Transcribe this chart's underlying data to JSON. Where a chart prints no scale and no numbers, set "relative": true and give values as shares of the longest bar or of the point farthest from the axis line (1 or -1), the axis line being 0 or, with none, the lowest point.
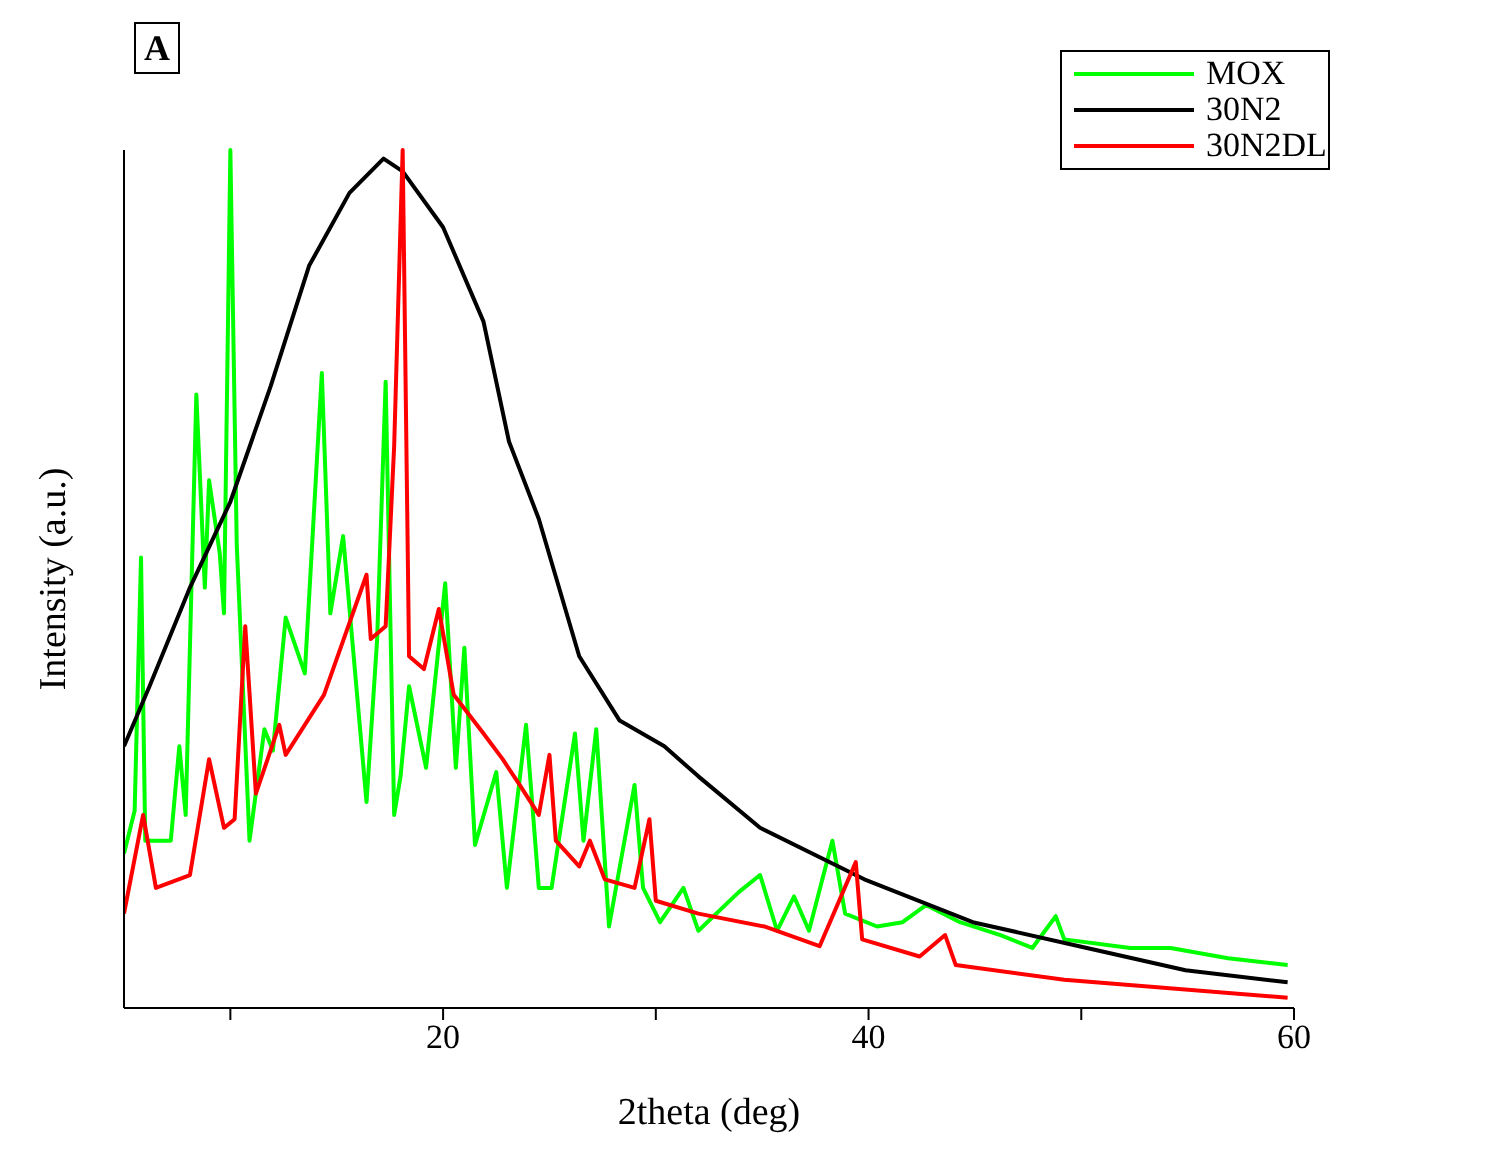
{
  "chart_data": {
    "type": "line",
    "relative": true,
    "xlabel": "2theta (deg)",
    "ylabel": "Intensity (a.u.)",
    "annotations": [
      "A"
    ],
    "xlim": [
      5,
      60
    ],
    "xticks": [
      {
        "value": 10,
        "label": null
      },
      20,
      {
        "value": 30,
        "label": null
      },
      40,
      {
        "value": 50,
        "label": null
      },
      60
    ],
    "legend": "top right",
    "grid": false,
    "marker": "none",
    "line_style": "solid",
    "series": [
      {
        "name": "MOX",
        "color": "#00ff00",
        "x": [
          5,
          5.5,
          5.8,
          6.0,
          7.2,
          7.6,
          7.9,
          8.4,
          8.8,
          9.0,
          9.5,
          9.7,
          10.0,
          10.3,
          10.9,
          11.6,
          12.0,
          12.6,
          13.5,
          14.3,
          14.7,
          15.3,
          16.4,
          16.9,
          17.3,
          17.7,
          18.0,
          18.4,
          19.2,
          20.1,
          20.6,
          21.0,
          21.5,
          22.5,
          23.0,
          23.9,
          24.5,
          25.1,
          26.2,
          26.6,
          27.2,
          27.8,
          29.0,
          29.4,
          30.2,
          31.3,
          32.0,
          33.9,
          34.9,
          35.7,
          36.5,
          37.2,
          38.3,
          38.9,
          40.4,
          41.6,
          42.7,
          44.3,
          46.2,
          47.7,
          48.8,
          49.2,
          52.3,
          54.2,
          56.9,
          59.7
        ],
        "values": [
          0.18,
          0.23,
          0.525,
          0.195,
          0.195,
          0.305,
          0.225,
          0.715,
          0.49,
          0.615,
          0.53,
          0.46,
          1.0,
          0.54,
          0.195,
          0.325,
          0.3,
          0.455,
          0.39,
          0.74,
          0.46,
          0.55,
          0.24,
          0.43,
          0.73,
          0.225,
          0.27,
          0.375,
          0.28,
          0.495,
          0.28,
          0.42,
          0.19,
          0.275,
          0.14,
          0.33,
          0.14,
          0.14,
          0.32,
          0.195,
          0.325,
          0.095,
          0.26,
          0.14,
          0.1,
          0.14,
          0.09,
          0.135,
          0.155,
          0.09,
          0.13,
          0.09,
          0.195,
          0.11,
          0.095,
          0.1,
          0.12,
          0.1,
          0.085,
          0.07,
          0.107,
          0.08,
          0.07,
          0.07,
          0.058,
          0.05
        ]
      },
      {
        "name": "30N2",
        "color": "#000000",
        "x": [
          5.0,
          6.2,
          8.1,
          10.0,
          11.9,
          13.7,
          15.6,
          17.2,
          18.1,
          20.0,
          21.9,
          23.1,
          24.5,
          26.4,
          28.3,
          30.4,
          32.0,
          34.9,
          39.8,
          44.9,
          49.9,
          54.9,
          59.7
        ],
        "values": [
          0.305,
          0.375,
          0.49,
          0.59,
          0.725,
          0.865,
          0.95,
          0.99,
          0.975,
          0.91,
          0.8,
          0.66,
          0.57,
          0.41,
          0.335,
          0.305,
          0.27,
          0.21,
          0.15,
          0.1,
          0.072,
          0.044,
          0.03
        ]
      },
      {
        "name": "30N2DL",
        "color": "#ff0000",
        "x": [
          5.0,
          5.9,
          6.5,
          8.1,
          9.0,
          9.7,
          10.2,
          10.7,
          11.2,
          12.3,
          12.6,
          14.4,
          16.4,
          16.6,
          17.3,
          17.7,
          18.1,
          18.4,
          19.1,
          19.8,
          20.5,
          21.9,
          22.8,
          23.6,
          24.5,
          25.0,
          25.3,
          26.4,
          26.9,
          27.6,
          29.0,
          29.7,
          30.0,
          32.0,
          35.1,
          37.7,
          39.4,
          39.7,
          42.4,
          43.6,
          44.1,
          49.2,
          59.7
        ],
        "values": [
          0.11,
          0.225,
          0.14,
          0.155,
          0.29,
          0.21,
          0.22,
          0.445,
          0.25,
          0.33,
          0.295,
          0.365,
          0.505,
          0.43,
          0.445,
          0.655,
          1.0,
          0.41,
          0.395,
          0.465,
          0.365,
          0.32,
          0.29,
          0.26,
          0.225,
          0.295,
          0.195,
          0.165,
          0.195,
          0.15,
          0.14,
          0.22,
          0.125,
          0.11,
          0.095,
          0.072,
          0.17,
          0.08,
          0.06,
          0.085,
          0.05,
          0.033,
          0.012
        ]
      }
    ]
  }
}
